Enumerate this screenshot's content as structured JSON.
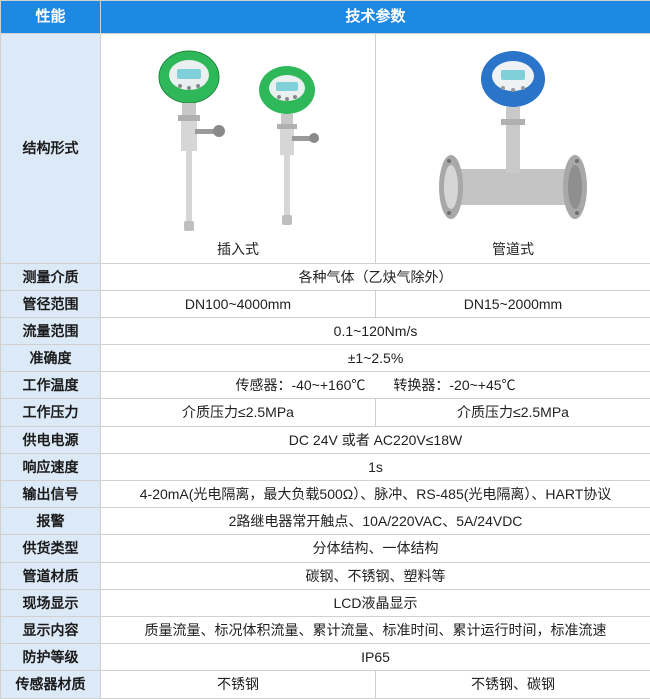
{
  "colors": {
    "header_bg": "#1e88e5",
    "header_fg": "#ffffff",
    "label_bg": "#dceaf7",
    "label_fg": "#1a1a1a",
    "cell_bg": "#ffffff",
    "cell_fg": "#222222",
    "border": "#d0d0d0",
    "meter_green": "#2fb85a",
    "meter_blue": "#2a74c9",
    "meter_lcd": "#7fd0d8",
    "meter_silver": "#d6d6d6",
    "meter_silver_dark": "#a8a8a8",
    "pipe_gray": "#bfbfbf"
  },
  "header": {
    "left": "性能",
    "right": "技术参数"
  },
  "structure_row": {
    "label": "结构形式",
    "left_caption": "插入式",
    "right_caption": "管道式"
  },
  "rows": [
    {
      "label": "测量介质",
      "span": 2,
      "vals": [
        "各种气体（乙炔气除外）"
      ]
    },
    {
      "label": "管径范围",
      "span": 1,
      "vals": [
        "DN100~4000mm",
        "DN15~2000mm"
      ]
    },
    {
      "label": "流量范围",
      "span": 2,
      "vals": [
        "0.1~120Nm/s"
      ]
    },
    {
      "label": "准确度",
      "span": 2,
      "vals": [
        "±1~2.5%"
      ]
    },
    {
      "label": "工作温度",
      "span": 2,
      "vals": [
        "传感器：-40~+160℃　　转换器：-20~+45℃"
      ]
    },
    {
      "label": "工作压力",
      "span": 1,
      "vals": [
        "介质压力≤2.5MPa",
        "介质压力≤2.5MPa"
      ]
    },
    {
      "label": "供电电源",
      "span": 2,
      "vals": [
        "DC 24V 或者 AC220V≤18W"
      ]
    },
    {
      "label": "响应速度",
      "span": 2,
      "vals": [
        "1s"
      ]
    },
    {
      "label": "输出信号",
      "span": 2,
      "vals": [
        "4-20mA(光电隔离，最大负载500Ω）、脉冲、RS-485(光电隔离）、HART协议"
      ]
    },
    {
      "label": "报警",
      "span": 2,
      "vals": [
        "2路继电器常开触点、10A/220VAC、5A/24VDC"
      ]
    },
    {
      "label": "供货类型",
      "span": 2,
      "vals": [
        "分体结构、一体结构"
      ]
    },
    {
      "label": "管道材质",
      "span": 2,
      "vals": [
        "碳钢、不锈钢、塑料等"
      ]
    },
    {
      "label": "现场显示",
      "span": 2,
      "vals": [
        "LCD液晶显示"
      ]
    },
    {
      "label": "显示内容",
      "span": 2,
      "vals": [
        "质量流量、标况体积流量、累计流量、标准时间、累计运行时间，标准流速"
      ]
    },
    {
      "label": "防护等级",
      "span": 2,
      "vals": [
        "IP65"
      ]
    },
    {
      "label": "传感器材质",
      "span": 1,
      "vals": [
        "不锈钢",
        "不锈钢、碳钢"
      ]
    }
  ]
}
